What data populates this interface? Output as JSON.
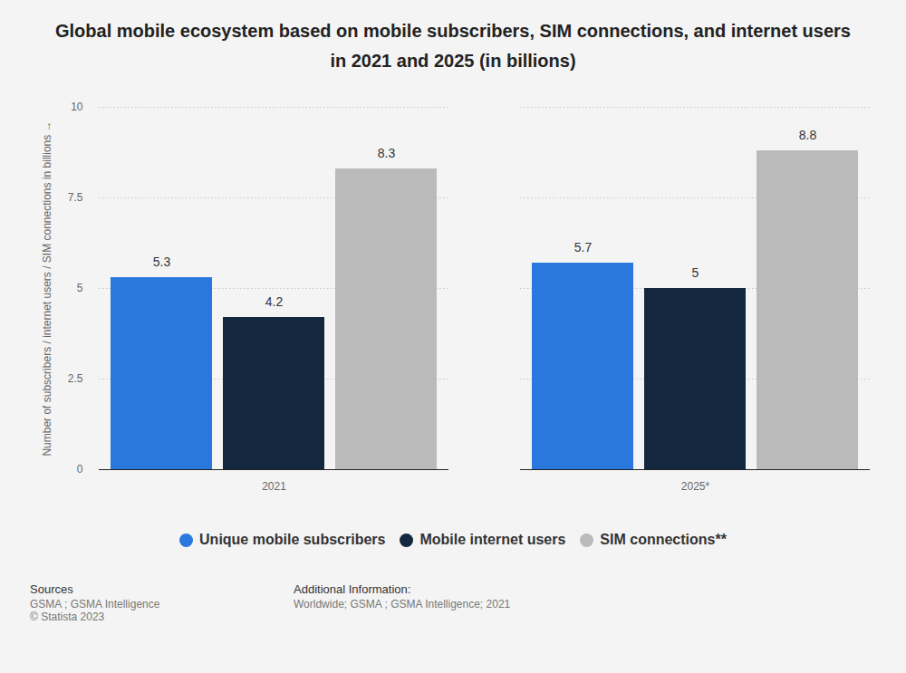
{
  "chart_data": {
    "type": "bar",
    "title": "Global mobile ecosystem based on mobile subscribers, SIM connections, and internet users in 2021 and 2025 (in billions)",
    "categories": [
      "2021",
      "2025*"
    ],
    "series": [
      {
        "name": "Unique mobile subscribers",
        "color": "#2a78dd",
        "values": [
          5.3,
          5.7
        ]
      },
      {
        "name": "Mobile internet users",
        "color": "#13273f",
        "values": [
          4.2,
          5
        ]
      },
      {
        "name": "SIM connections**",
        "color": "#bababa",
        "values": [
          8.3,
          8.8
        ]
      }
    ],
    "y_label": "Number of subscribers / internet users / SIM connections in billions",
    "ylim": [
      0,
      10
    ],
    "yticks": [
      0,
      2.5,
      5,
      7.5,
      10
    ],
    "grid": true,
    "data_labels": true,
    "legend": "bottom",
    "footer": {
      "sources_heading": "Sources",
      "sources": [
        "GSMA ; GSMA Intelligence",
        "© Statista 2023"
      ],
      "additional_heading": "Additional Information:",
      "additional": "Worldwide; GSMA ; GSMA Intelligence; 2021"
    }
  }
}
